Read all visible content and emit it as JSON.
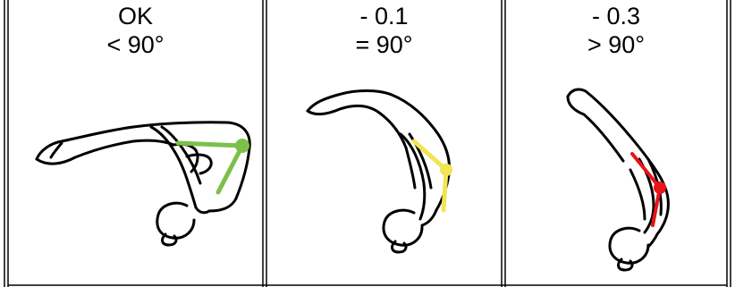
{
  "columns": [
    {
      "penalty": "OK",
      "condition": "< 90°",
      "marker_color": "#7cc04a"
    },
    {
      "penalty": "- 0.1",
      "condition": "= 90°",
      "marker_color": "#f2e553"
    },
    {
      "penalty": "- 0.3",
      "condition": "> 90°",
      "marker_color": "#e8141a"
    }
  ]
}
